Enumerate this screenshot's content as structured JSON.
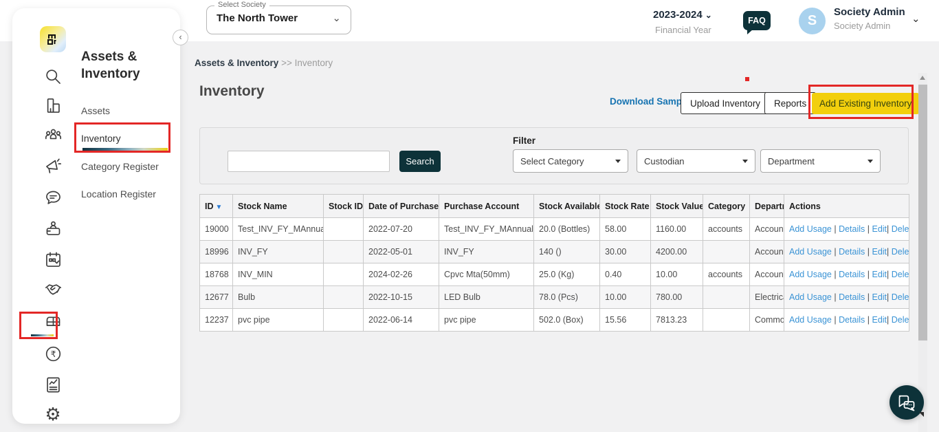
{
  "colors": {
    "navy": "#0d3239",
    "yellow": "#f2cf0d",
    "red": "#e32726",
    "link": "#1673b1",
    "link_light": "#3a93d5"
  },
  "header": {
    "select_society_label": "Select Society",
    "selected_society": "The North Tower",
    "financial_year": "2023-2024",
    "financial_year_label": "Financial Year",
    "faq_label": "FAQ",
    "user_initial": "S",
    "user_name": "Society Admin",
    "user_role": "Society Admin"
  },
  "sidebar": {
    "module_title": "Assets & Inventory",
    "items": [
      {
        "label": "Assets"
      },
      {
        "label": "Inventory"
      },
      {
        "label": "Category Register"
      },
      {
        "label": "Location Register"
      }
    ]
  },
  "breadcrumb": {
    "parent": "Assets & Inventory",
    "separator": ">>",
    "current": "Inventory"
  },
  "page": {
    "title": "Inventory"
  },
  "toolbar": {
    "download_sample": "Download Sample",
    "upload_inventory": "Upload Inventory",
    "reports": "Reports",
    "add_existing_inventory": "Add Existing Inventory"
  },
  "filter": {
    "search_value": "",
    "search_button": "Search",
    "filter_label": "Filter",
    "category_dropdown": "Select Category",
    "custodian_dropdown": "Custodian",
    "department_dropdown": "Department"
  },
  "table": {
    "columns": [
      "ID",
      "Stock Name",
      "Stock ID",
      "Date of Purchase",
      "Purchase Account",
      "Stock Available",
      "Stock Rate",
      "Stock Value",
      "Category",
      "Department",
      "Actions"
    ],
    "actions": [
      "Add Usage",
      "Details",
      "Edit",
      "Delete"
    ],
    "rows": [
      {
        "id": "19000",
        "stock_name": "Test_INV_FY_MAnnual",
        "stock_id": "",
        "date_of_purchase": "2022-07-20",
        "purchase_account": "Test_INV_FY_MAnnual",
        "stock_available": "20.0 (Bottles)",
        "stock_rate": "58.00",
        "stock_value": "1160.00",
        "category": "accounts",
        "department": "Accounts"
      },
      {
        "id": "18996",
        "stock_name": "INV_FY",
        "stock_id": "",
        "date_of_purchase": "2022-05-01",
        "purchase_account": "INV_FY",
        "stock_available": "140 ()",
        "stock_rate": "30.00",
        "stock_value": "4200.00",
        "category": "",
        "department": "Accounts"
      },
      {
        "id": "18768",
        "stock_name": "INV_MIN",
        "stock_id": "",
        "date_of_purchase": "2024-02-26",
        "purchase_account": "Cpvc Mta(50mm)",
        "stock_available": "25.0 (Kg)",
        "stock_rate": "0.40",
        "stock_value": "10.00",
        "category": "accounts",
        "department": "Accounts"
      },
      {
        "id": "12677",
        "stock_name": "Bulb",
        "stock_id": "",
        "date_of_purchase": "2022-10-15",
        "purchase_account": "LED Bulb",
        "stock_available": "78.0 (Pcs)",
        "stock_rate": "10.00",
        "stock_value": "780.00",
        "category": "",
        "department": "Electrical"
      },
      {
        "id": "12237",
        "stock_name": "pvc pipe",
        "stock_id": "",
        "date_of_purchase": "2022-06-14",
        "purchase_account": "pvc pipe",
        "stock_available": "502.0 (Box)",
        "stock_rate": "15.56",
        "stock_value": "7813.23",
        "category": "",
        "department": "Common"
      }
    ]
  }
}
